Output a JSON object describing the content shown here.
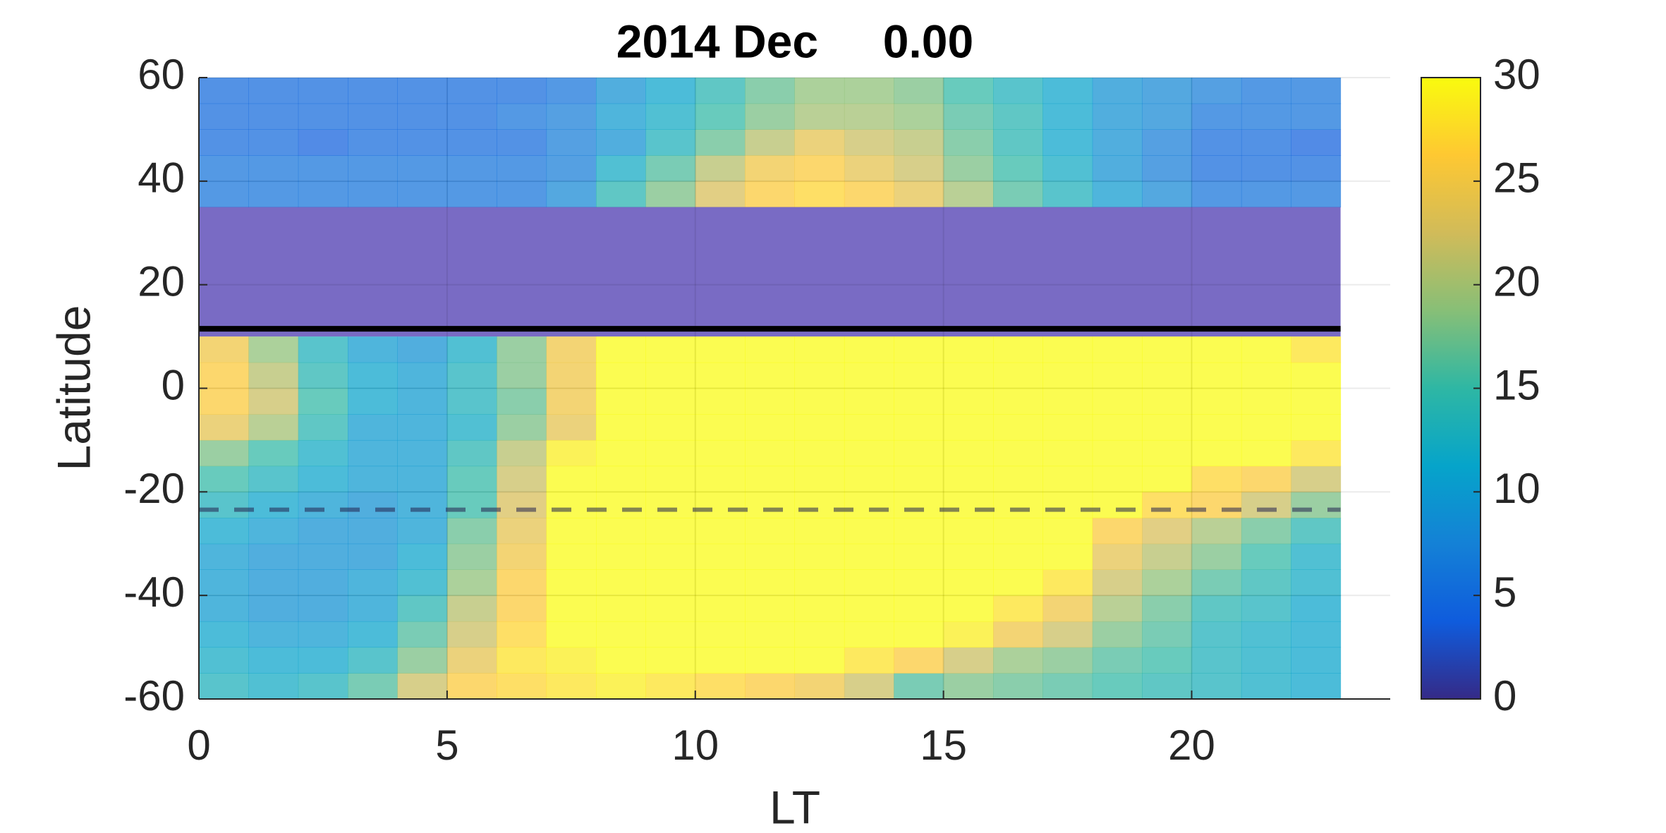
{
  "chart_data": {
    "type": "heatmap",
    "title": "2014 Dec     0.00",
    "xlabel": "LT",
    "ylabel": "Latitude",
    "x_edges": [
      0,
      1,
      2,
      3,
      4,
      5,
      6,
      7,
      8,
      9,
      10,
      11,
      12,
      13,
      14,
      15,
      16,
      17,
      18,
      19,
      20,
      21,
      22,
      23
    ],
    "y_edges": [
      -60,
      -55,
      -50,
      -45,
      -40,
      -35,
      -30,
      -25,
      -20,
      -15,
      -10,
      -5,
      0,
      5,
      10,
      15,
      20,
      25,
      30,
      35,
      40,
      45,
      50,
      55,
      60
    ],
    "z": [
      [
        13,
        12,
        13,
        16,
        22,
        26,
        27,
        28,
        29,
        28,
        27,
        26,
        25,
        22,
        16,
        18,
        17,
        16,
        15,
        14,
        13,
        12,
        11
      ],
      [
        12,
        11,
        11,
        13,
        18,
        24,
        28,
        29,
        30,
        30,
        30,
        30,
        30,
        28,
        26,
        22,
        19,
        18,
        16,
        15,
        13,
        12,
        11
      ],
      [
        11,
        10,
        10,
        11,
        16,
        22,
        27,
        30,
        30,
        30,
        30,
        30,
        30,
        30,
        30,
        29,
        25,
        22,
        18,
        16,
        13,
        12,
        11
      ],
      [
        10,
        9,
        9,
        10,
        14,
        21,
        26,
        30,
        30,
        30,
        30,
        30,
        30,
        30,
        30,
        30,
        28,
        25,
        20,
        17,
        14,
        13,
        11
      ],
      [
        10,
        9,
        9,
        10,
        12,
        19,
        26,
        30,
        30,
        30,
        30,
        30,
        30,
        30,
        30,
        30,
        30,
        28,
        22,
        19,
        16,
        14,
        12
      ],
      [
        10,
        9,
        9,
        9,
        11,
        18,
        25,
        30,
        30,
        30,
        30,
        30,
        30,
        30,
        30,
        30,
        30,
        30,
        24,
        21,
        18,
        15,
        12
      ],
      [
        11,
        10,
        9,
        9,
        10,
        17,
        24,
        30,
        30,
        30,
        30,
        30,
        30,
        30,
        30,
        30,
        30,
        30,
        26,
        23,
        20,
        17,
        14
      ],
      [
        13,
        11,
        10,
        9,
        10,
        15,
        23,
        30,
        30,
        30,
        30,
        30,
        30,
        30,
        30,
        30,
        30,
        30,
        30,
        27,
        26,
        22,
        18
      ],
      [
        15,
        13,
        11,
        10,
        10,
        15,
        22,
        30,
        30,
        30,
        30,
        30,
        30,
        30,
        30,
        30,
        30,
        30,
        30,
        30,
        27,
        26,
        22
      ],
      [
        18,
        15,
        12,
        10,
        10,
        14,
        21,
        29,
        30,
        30,
        30,
        30,
        30,
        30,
        30,
        30,
        30,
        30,
        30,
        30,
        30,
        30,
        28
      ],
      [
        24,
        20,
        14,
        10,
        10,
        12,
        18,
        24,
        30,
        30,
        30,
        30,
        30,
        30,
        30,
        30,
        30,
        30,
        30,
        30,
        30,
        30,
        30
      ],
      [
        26,
        22,
        15,
        11,
        10,
        13,
        17,
        25,
        30,
        30,
        30,
        30,
        30,
        30,
        30,
        30,
        30,
        30,
        30,
        30,
        30,
        30,
        30
      ],
      [
        26,
        21,
        14,
        11,
        10,
        13,
        18,
        25,
        30,
        30,
        30,
        30,
        30,
        30,
        30,
        30,
        30,
        30,
        30,
        30,
        30,
        30,
        30
      ],
      [
        25,
        19,
        13,
        10,
        9,
        12,
        18,
        25,
        30,
        30,
        30,
        30,
        30,
        30,
        30,
        30,
        30,
        30,
        30,
        30,
        30,
        30,
        28
      ],
      [
        null,
        null,
        null,
        null,
        null,
        null,
        null,
        null,
        null,
        null,
        null,
        null,
        null,
        null,
        null,
        null,
        null,
        null,
        null,
        null,
        null,
        null,
        null
      ],
      [
        null,
        null,
        null,
        null,
        null,
        null,
        null,
        null,
        null,
        null,
        null,
        null,
        null,
        null,
        null,
        null,
        null,
        null,
        null,
        null,
        null,
        null,
        null
      ],
      [
        null,
        null,
        null,
        null,
        null,
        null,
        null,
        null,
        null,
        null,
        null,
        null,
        null,
        null,
        null,
        null,
        null,
        null,
        null,
        null,
        null,
        null,
        null
      ],
      [
        null,
        null,
        null,
        null,
        null,
        null,
        null,
        null,
        null,
        null,
        null,
        null,
        null,
        null,
        null,
        null,
        null,
        null,
        null,
        null,
        null,
        null,
        null
      ],
      [
        null,
        null,
        null,
        null,
        null,
        null,
        null,
        null,
        null,
        null,
        null,
        null,
        null,
        null,
        null,
        null,
        null,
        null,
        null,
        null,
        null,
        null,
        null
      ],
      [
        6,
        6,
        6,
        6,
        6,
        6,
        6,
        8,
        14,
        18,
        23,
        26,
        27,
        26,
        24,
        20,
        16,
        13,
        10,
        8,
        6,
        6,
        6
      ],
      [
        6,
        6,
        6,
        6,
        6,
        6,
        6,
        7,
        12,
        16,
        21,
        25,
        26,
        24,
        22,
        18,
        15,
        12,
        9,
        7,
        5,
        5,
        5
      ],
      [
        5,
        5,
        4,
        5,
        5,
        5,
        5,
        7,
        9,
        13,
        17,
        21,
        24,
        22,
        21,
        17,
        14,
        11,
        9,
        7,
        5,
        5,
        4
      ],
      [
        5,
        5,
        5,
        5,
        5,
        5,
        6,
        7,
        10,
        12,
        15,
        18,
        20,
        20,
        19,
        16,
        14,
        11,
        9,
        8,
        6,
        6,
        6
      ],
      [
        5,
        5,
        5,
        5,
        5,
        5,
        5,
        6,
        9,
        11,
        14,
        17,
        19,
        19,
        18,
        15,
        13,
        11,
        9,
        8,
        7,
        6,
        6
      ]
    ],
    "xlim": [
      0,
      24
    ],
    "ylim": [
      -60,
      60
    ],
    "xticks": [
      0,
      5,
      10,
      15,
      20
    ],
    "yticks": [
      -60,
      -40,
      -20,
      0,
      20,
      40,
      60
    ],
    "clim": [
      0,
      30
    ],
    "cticks": [
      0,
      5,
      10,
      15,
      20,
      25,
      30
    ],
    "colormap": [
      "#352a87",
      "#0f5cdd",
      "#1481d6",
      "#06a4ca",
      "#2eb7a4",
      "#87bf77",
      "#d1bb59",
      "#fec832",
      "#f9fb0e"
    ],
    "grid": true,
    "shaded_band": {
      "ylim": [
        10,
        35
      ],
      "color": "#5b4bb7"
    },
    "hlines": [
      {
        "y": 11.5,
        "color": "#000000",
        "style": "solid"
      },
      {
        "y": -23.44,
        "color": "#23234f",
        "style": "dashed"
      }
    ]
  }
}
